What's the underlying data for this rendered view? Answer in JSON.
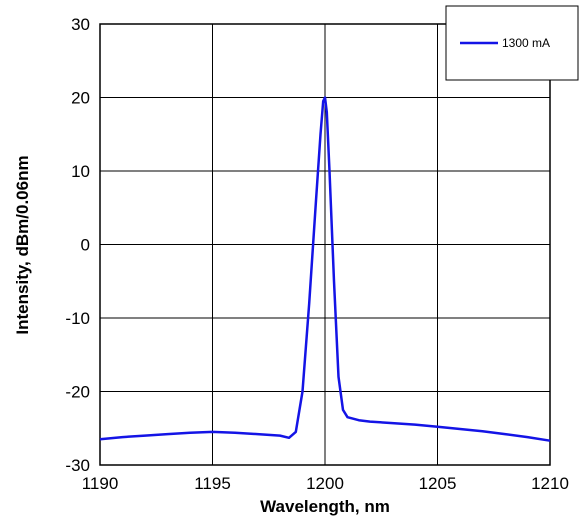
{
  "chart_data": {
    "type": "line",
    "xlabel": "Wavelength, nm",
    "ylabel": "Intensity, dBm/0.06nm",
    "xlim": [
      1190,
      1210
    ],
    "ylim": [
      -30,
      30
    ],
    "x_ticks": [
      1190,
      1195,
      1200,
      1205,
      1210
    ],
    "y_ticks": [
      30,
      20,
      10,
      0,
      -10,
      -20,
      -30
    ],
    "x_tick_labels": [
      "1190",
      "1195",
      "1200",
      "1205",
      "1210"
    ],
    "y_tick_labels": [
      "30",
      "20",
      "10",
      "0",
      "-10",
      "-20",
      "-30"
    ],
    "grid": true,
    "legend_position": "top-right",
    "series": [
      {
        "name": "1300 mA",
        "color": "#1414e6",
        "x": [
          1190,
          1191,
          1192,
          1193,
          1194,
          1195,
          1196,
          1197,
          1198,
          1198.4,
          1198.7,
          1199.0,
          1199.3,
          1199.6,
          1199.8,
          1199.92,
          1200.0,
          1200.08,
          1200.2,
          1200.4,
          1200.6,
          1200.8,
          1201.0,
          1201.5,
          1202,
          1203,
          1204,
          1205,
          1206,
          1207,
          1208,
          1209,
          1210
        ],
        "y": [
          -26.5,
          -26.2,
          -26.0,
          -25.8,
          -25.6,
          -25.5,
          -25.6,
          -25.8,
          -26.0,
          -26.3,
          -25.5,
          -20.0,
          -8.0,
          6.0,
          15.0,
          19.5,
          20.0,
          18.0,
          10.0,
          -5.0,
          -18.0,
          -22.5,
          -23.5,
          -23.9,
          -24.1,
          -24.3,
          -24.5,
          -24.8,
          -25.1,
          -25.4,
          -25.8,
          -26.2,
          -26.7
        ]
      }
    ]
  }
}
